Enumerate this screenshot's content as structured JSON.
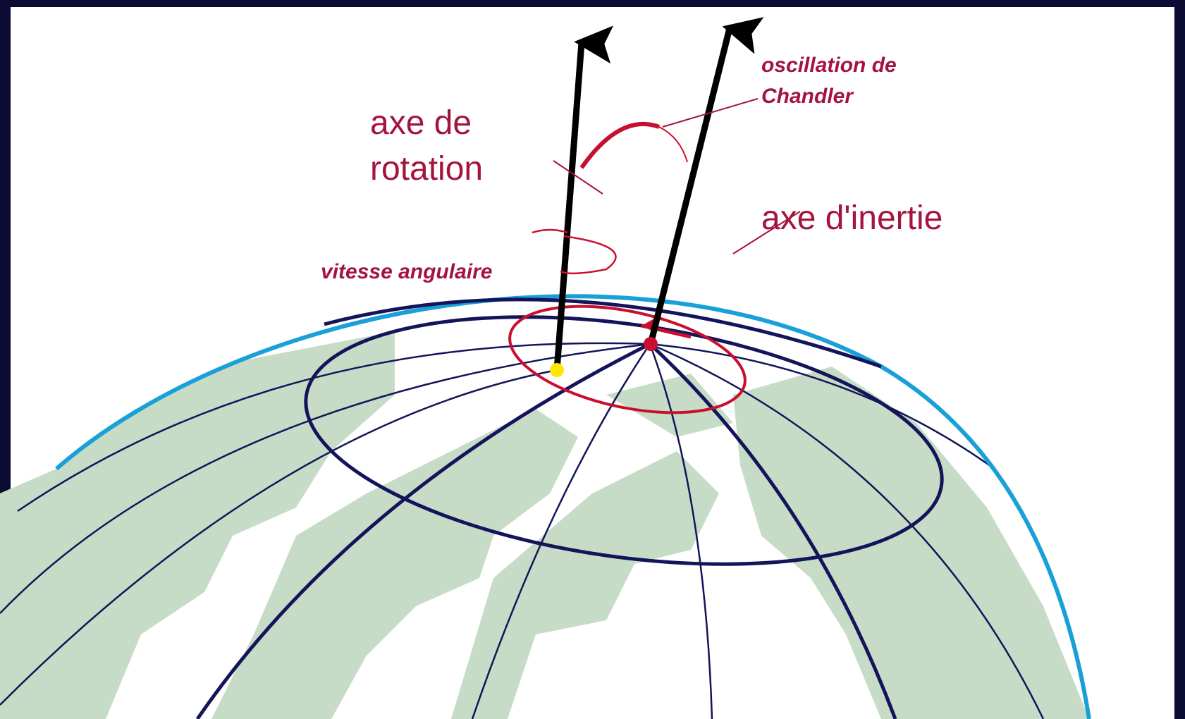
{
  "labels": {
    "rotation_axis": [
      "axe de",
      "rotation"
    ],
    "chandler": [
      "oscillation de",
      "Chandler"
    ],
    "inertia_axis": "axe d'inertie",
    "angular_velocity": "vitesse angulaire"
  }
}
